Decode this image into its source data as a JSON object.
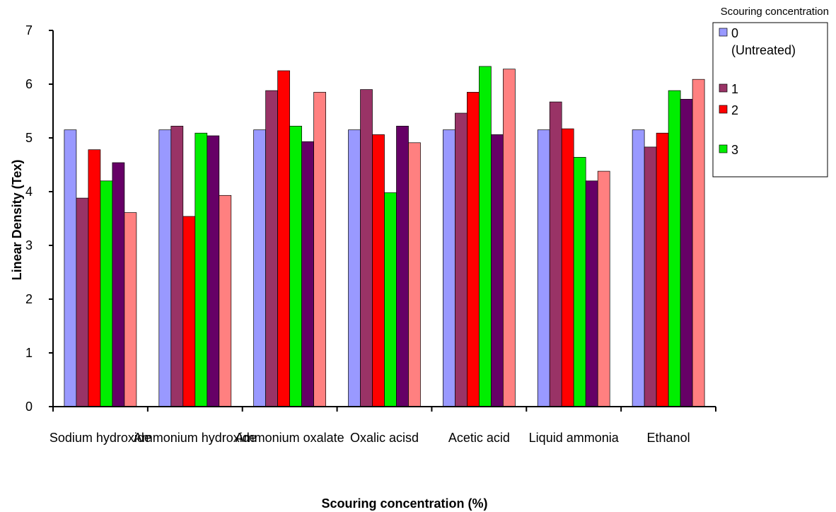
{
  "chart_data": {
    "type": "bar",
    "title": "",
    "xlabel": "Scouring concentration  (%)",
    "ylabel": "Linear Density  (Tex)",
    "ylim": [
      0,
      7
    ],
    "yticks": [
      0,
      1,
      2,
      3,
      4,
      5,
      6,
      7
    ],
    "grid": false,
    "legend_title": "Scouring concentration",
    "legend_position": "top-right",
    "categories": [
      "Sodium hydroxide",
      "Ammonium hydroxide",
      "Ammonium oxalate",
      "Oxalic acisd",
      "Acetic acid",
      "Liquid ammonia",
      "Ethanol"
    ],
    "series": [
      {
        "name": "0 (Untreated)",
        "legend_lines": [
          "0",
          "(Untreated)"
        ],
        "color": "#9999ff",
        "values": [
          5.15,
          5.15,
          5.15,
          5.15,
          5.15,
          5.15,
          5.15
        ]
      },
      {
        "name": "1",
        "legend_lines": [
          "1"
        ],
        "color": "#993366",
        "values": [
          3.88,
          5.22,
          5.88,
          5.9,
          5.46,
          5.67,
          4.83
        ]
      },
      {
        "name": "2",
        "legend_lines": [
          "2"
        ],
        "color": "#ff0000",
        "values": [
          4.78,
          3.54,
          6.25,
          5.06,
          5.85,
          5.17,
          5.09
        ]
      },
      {
        "name": "3",
        "legend_lines": [
          "3"
        ],
        "color": "#00ee00",
        "values": [
          4.2,
          5.09,
          5.22,
          3.98,
          6.33,
          4.64,
          5.88
        ]
      },
      {
        "name": "",
        "legend_lines": [],
        "color": "#660066",
        "values": [
          4.54,
          5.04,
          4.93,
          5.22,
          5.06,
          4.2,
          5.72
        ]
      },
      {
        "name": "",
        "legend_lines": [],
        "color": "#ff8080",
        "values": [
          3.61,
          3.93,
          5.85,
          4.91,
          6.28,
          4.38,
          6.09
        ]
      }
    ]
  }
}
